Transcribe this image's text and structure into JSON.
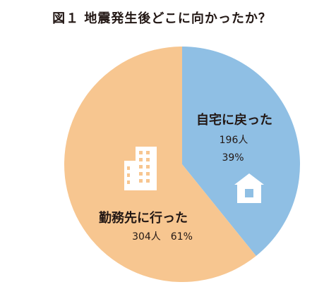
{
  "title": "図１ 地震発生後どこに向かったか？",
  "chart_data": {
    "type": "pie",
    "title": "図１ 地震発生後どこに向かったか？",
    "slices": [
      {
        "label": "自宅に戻った",
        "count": 196,
        "count_unit": "人",
        "percent": 39,
        "color": "#8fbfe4",
        "icon": "house-icon"
      },
      {
        "label": "勤務先に行った",
        "count": 304,
        "count_unit": "人",
        "percent": 61,
        "color": "#f7c690",
        "icon": "office-building-icon"
      }
    ],
    "labels": {
      "home_name": "自宅に戻った",
      "home_count": "196人",
      "home_percent": "39%",
      "work_name": "勤務先に行った",
      "work_count_percent": "304人　61%"
    },
    "start": "12 o'clock",
    "direction": "clockwise",
    "legend": "none"
  }
}
